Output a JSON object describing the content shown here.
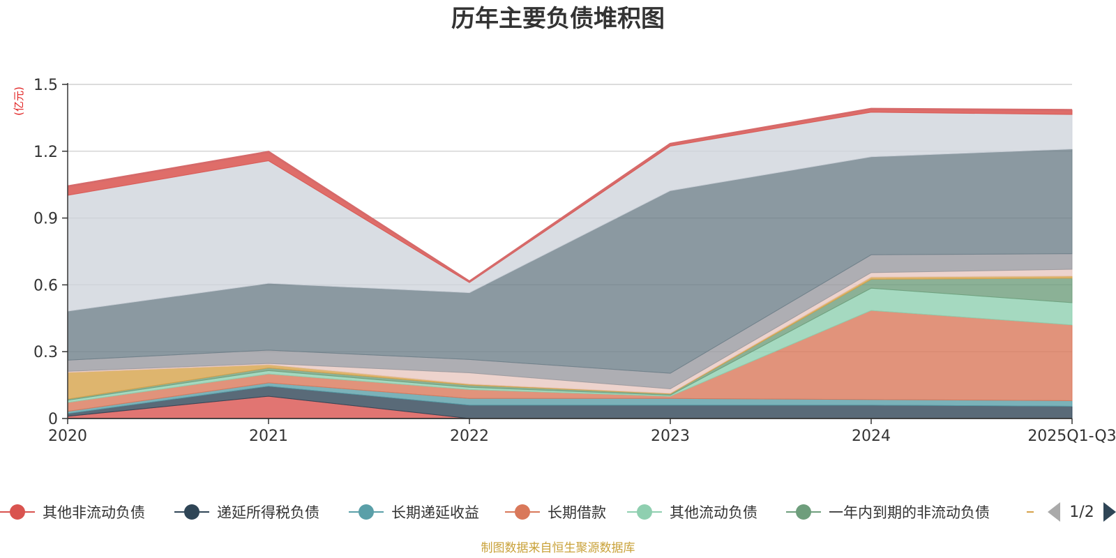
{
  "chart_data": {
    "type": "area",
    "stacked": true,
    "title": "历年主要负债堆积图",
    "y_unit_label": "(亿元)",
    "categories": [
      "2020",
      "2021",
      "2022",
      "2023",
      "2024",
      "2025Q1-Q3"
    ],
    "ylim": [
      0,
      1.5
    ],
    "yticks": [
      "0",
      "0.3",
      "0.6",
      "0.9",
      "1.2",
      "1.5"
    ],
    "grid": true,
    "legend_position": "bottom",
    "series": [
      {
        "name": "其他非流动负债",
        "color": "#d9534f",
        "values": [
          0.01,
          0.1,
          0.0,
          0.0,
          0.0,
          0.0
        ]
      },
      {
        "name": "递延所得税负债",
        "color": "#2f4556",
        "values": [
          0.012,
          0.045,
          0.06,
          0.06,
          0.06,
          0.055
        ]
      },
      {
        "name": "长期递延收益",
        "color": "#5a9fa8",
        "values": [
          0.01,
          0.015,
          0.03,
          0.03,
          0.025,
          0.025
        ]
      },
      {
        "name": "长期借款",
        "color": "#d9785a",
        "values": [
          0.04,
          0.04,
          0.04,
          0.01,
          0.4,
          0.34
        ]
      },
      {
        "name": "其他流动负债",
        "color": "#8fcfb0",
        "values": [
          0.01,
          0.015,
          0.01,
          0.005,
          0.1,
          0.1
        ]
      },
      {
        "name": "一年内到期的非流动负债",
        "color": "#6e9e7c",
        "values": [
          0.005,
          0.012,
          0.01,
          0.005,
          0.04,
          0.11
        ]
      },
      {
        "name": "",
        "color": "#d6a24a",
        "values": [
          0.12,
          0.015,
          0.005,
          0.003,
          0.01,
          0.01
        ]
      },
      {
        "name": "",
        "color": "#e8c8c0",
        "values": [
          0.005,
          0.005,
          0.05,
          0.02,
          0.02,
          0.03
        ]
      },
      {
        "name": "",
        "color": "#9a9aa0",
        "values": [
          0.05,
          0.06,
          0.06,
          0.07,
          0.08,
          0.07
        ]
      },
      {
        "name": "",
        "color": "#6e7f89",
        "values": [
          0.22,
          0.3,
          0.3,
          0.82,
          0.44,
          0.47
        ]
      },
      {
        "name": "",
        "color": "#cfd4dc",
        "values": [
          0.52,
          0.55,
          0.045,
          0.2,
          0.2,
          0.155
        ]
      },
      {
        "name": "",
        "color": "#d9534f",
        "values": [
          0.04,
          0.04,
          0.005,
          0.01,
          0.015,
          0.02
        ]
      }
    ]
  },
  "legend": {
    "page": "1/2"
  },
  "source_text": "制图数据来自恒生聚源数据库"
}
